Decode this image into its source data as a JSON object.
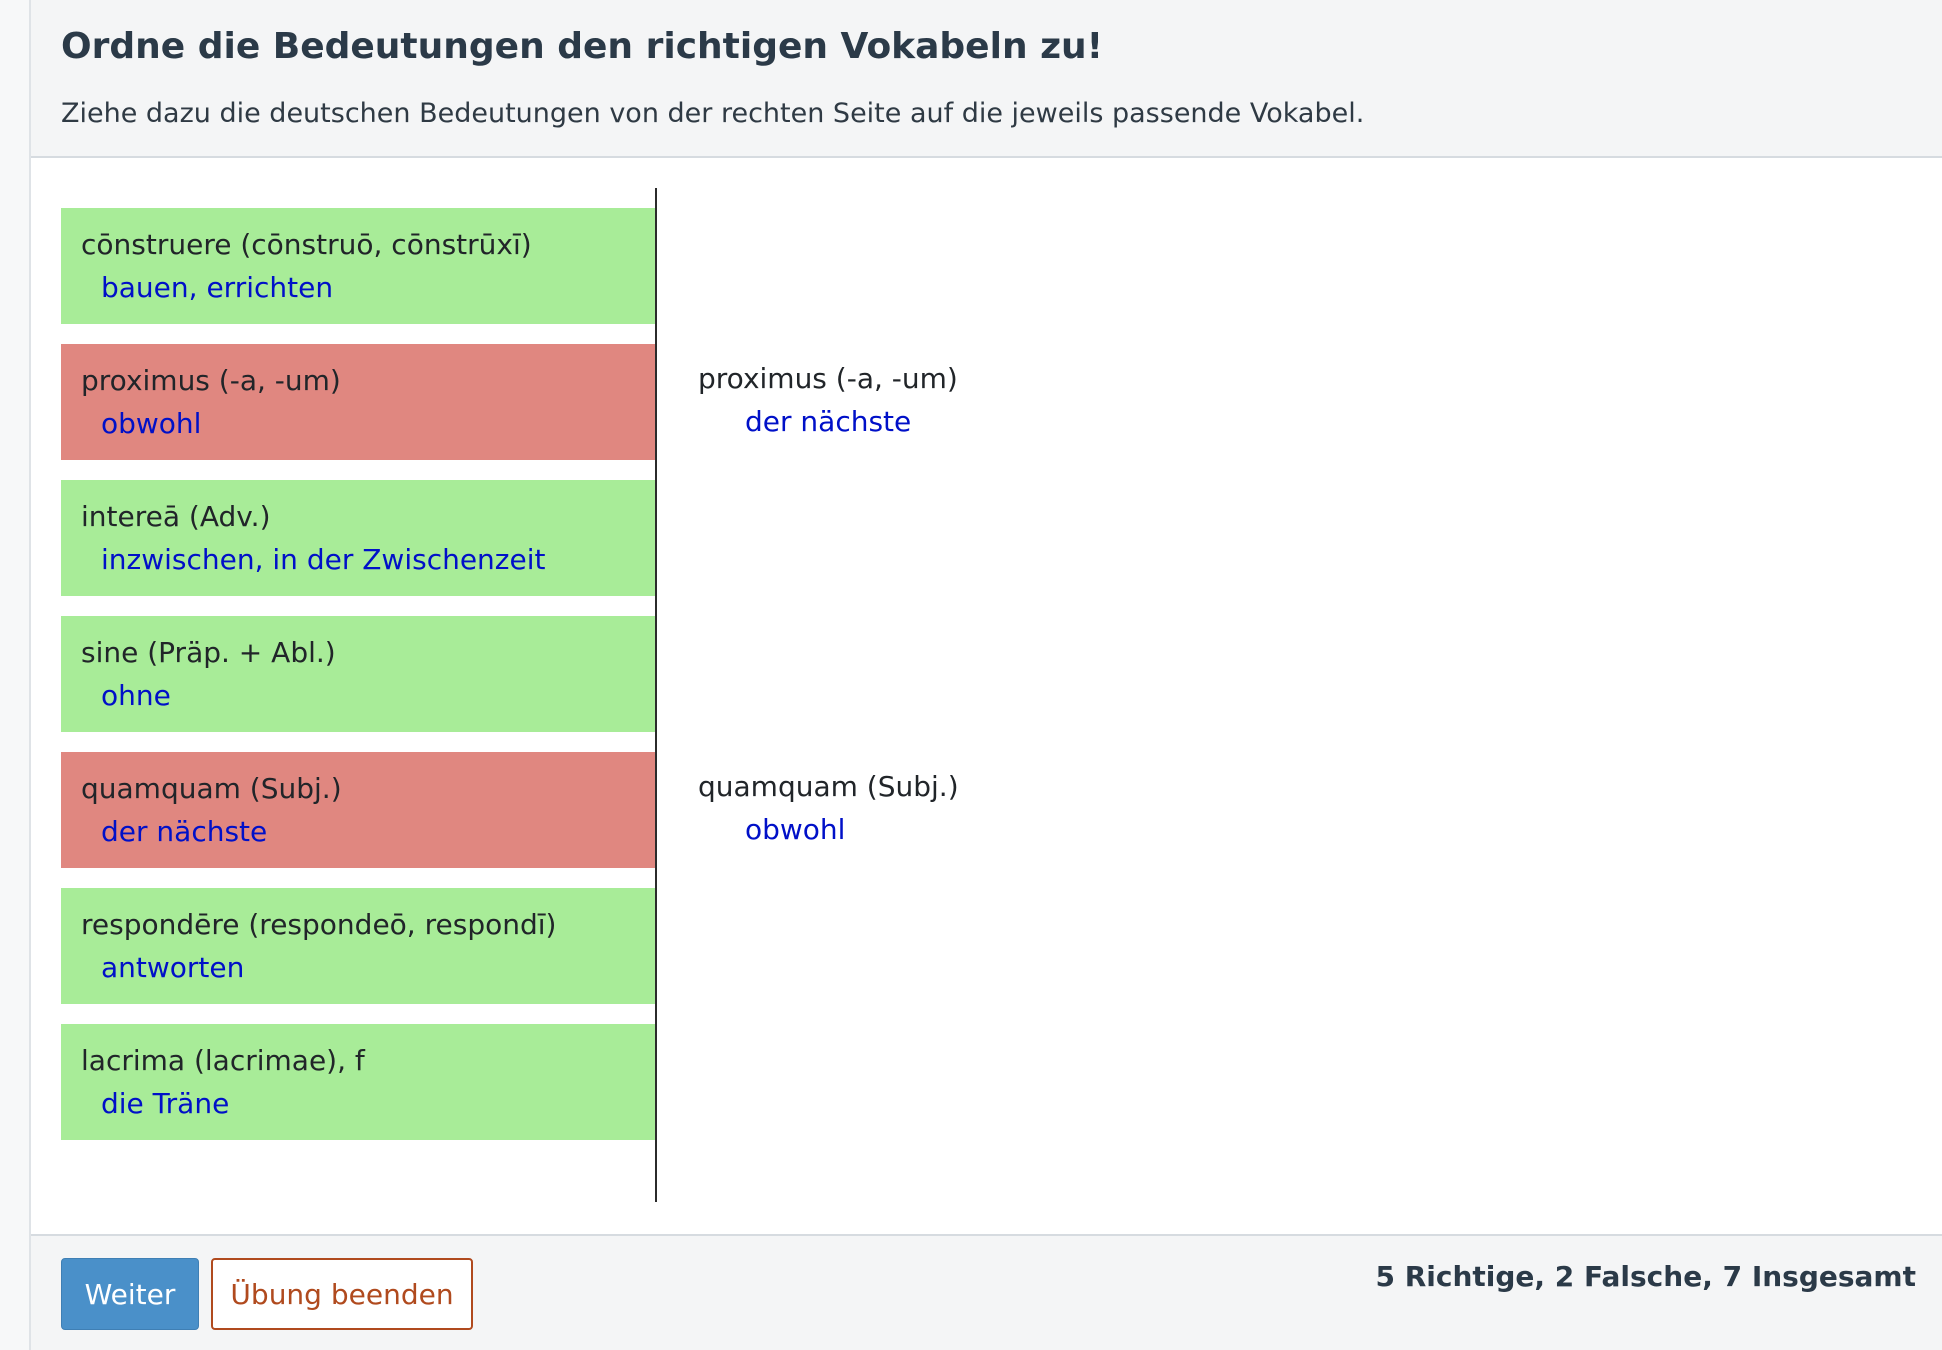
{
  "header": {
    "title": "Ordne die Bedeutungen den richtigen Vokabeln zu!",
    "instruction": "Ziehe dazu die deutschen Bedeutungen von der rechten Seite auf die jeweils passende Vokabel."
  },
  "pairs": [
    {
      "latin": "cōnstruere (cōnstruō, cōnstrūxī)",
      "meaning": "bauen, errichten",
      "status": "correct"
    },
    {
      "latin": "proximus (-a, -um)",
      "meaning": "obwohl",
      "status": "wrong"
    },
    {
      "latin": "intereā (Adv.)",
      "meaning": "inzwischen, in der Zwischenzeit",
      "status": "correct"
    },
    {
      "latin": "sine (Präp. + Abl.)",
      "meaning": "ohne",
      "status": "correct"
    },
    {
      "latin": "quamquam (Subj.)",
      "meaning": "der nächste",
      "status": "wrong"
    },
    {
      "latin": "respondēre (respondeō, respondī)",
      "meaning": "antworten",
      "status": "correct"
    },
    {
      "latin": "lacrima (lacrimae), f",
      "meaning": "die Träne",
      "status": "correct"
    }
  ],
  "corrections": [
    {
      "latin": "proximus (-a, -um)",
      "meaning": "der nächste"
    },
    {
      "latin": "quamquam (Subj.)",
      "meaning": "obwohl"
    }
  ],
  "footer": {
    "next_label": "Weiter",
    "end_label": "Übung beenden",
    "score": "5 Richtige, 2 Falsche, 7 Insgesamt"
  },
  "colors": {
    "correct_bg": "#a8ec98",
    "wrong_bg": "#e08780",
    "meaning_text": "#0010c8",
    "primary_button": "#4a90c9",
    "danger_outline": "#b04a1e"
  }
}
